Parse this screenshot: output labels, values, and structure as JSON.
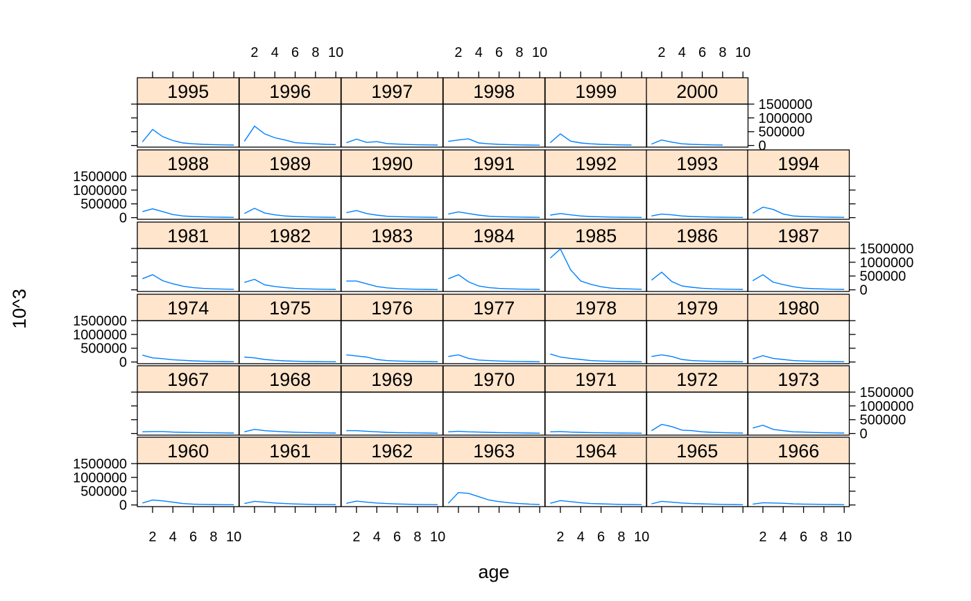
{
  "chart_data": {
    "type": "line",
    "layout": "lattice panels by year, 7 columns x 6 rows",
    "xlabel": "age",
    "ylabel": "10^3",
    "x": [
      1,
      2,
      3,
      4,
      5,
      6,
      7,
      8,
      9,
      10
    ],
    "xticks": [
      2,
      4,
      6,
      8,
      10
    ],
    "xlim": [
      0.5,
      10.5
    ],
    "ylim": [
      -60000,
      1500000
    ],
    "yticks": [
      0,
      500000,
      1000000,
      1500000
    ],
    "ytick_labels": [
      "0",
      "500000",
      "1000000",
      "1500000"
    ],
    "series_color": "#0080ff",
    "strip_color": "#ffe5cc",
    "series": [
      {
        "name": "1960",
        "values": [
          70000,
          180000,
          150000,
          100000,
          50000,
          30000,
          20000,
          15000,
          10000,
          8000
        ]
      },
      {
        "name": "1961",
        "values": [
          50000,
          130000,
          100000,
          70000,
          50000,
          35000,
          25000,
          18000,
          12000,
          10000
        ]
      },
      {
        "name": "1962",
        "values": [
          60000,
          140000,
          100000,
          70000,
          50000,
          35000,
          25000,
          18000,
          12000,
          10000
        ]
      },
      {
        "name": "1963",
        "values": [
          60000,
          450000,
          420000,
          300000,
          180000,
          120000,
          80000,
          50000,
          30000,
          20000
        ]
      },
      {
        "name": "1964",
        "values": [
          60000,
          160000,
          120000,
          80000,
          50000,
          40000,
          30000,
          20000,
          15000,
          10000
        ]
      },
      {
        "name": "1965",
        "values": [
          40000,
          130000,
          100000,
          70000,
          50000,
          40000,
          30000,
          20000,
          15000,
          10000
        ]
      },
      {
        "name": "1966",
        "values": [
          30000,
          80000,
          70000,
          60000,
          40000,
          30000,
          25000,
          20000,
          15000,
          10000
        ]
      },
      {
        "name": "1967",
        "values": [
          60000,
          70000,
          70000,
          50000,
          40000,
          35000,
          30000,
          25000,
          20000,
          15000
        ]
      },
      {
        "name": "1968",
        "values": [
          60000,
          150000,
          100000,
          80000,
          60000,
          45000,
          35000,
          25000,
          20000,
          15000
        ]
      },
      {
        "name": "1969",
        "values": [
          100000,
          100000,
          80000,
          60000,
          40000,
          30000,
          25000,
          20000,
          15000,
          10000
        ]
      },
      {
        "name": "1970",
        "values": [
          60000,
          80000,
          60000,
          50000,
          40000,
          30000,
          25000,
          20000,
          15000,
          10000
        ]
      },
      {
        "name": "1971",
        "values": [
          60000,
          70000,
          50000,
          40000,
          30000,
          25000,
          20000,
          15000,
          12000,
          10000
        ]
      },
      {
        "name": "1972",
        "values": [
          100000,
          330000,
          250000,
          120000,
          100000,
          60000,
          40000,
          30000,
          20000,
          15000
        ]
      },
      {
        "name": "1973",
        "values": [
          200000,
          300000,
          150000,
          100000,
          60000,
          50000,
          35000,
          25000,
          20000,
          15000
        ]
      },
      {
        "name": "1974",
        "values": [
          250000,
          150000,
          120000,
          80000,
          60000,
          40000,
          30000,
          20000,
          15000,
          10000
        ]
      },
      {
        "name": "1975",
        "values": [
          180000,
          150000,
          90000,
          60000,
          40000,
          30000,
          20000,
          15000,
          10000,
          8000
        ]
      },
      {
        "name": "1976",
        "values": [
          260000,
          220000,
          180000,
          90000,
          50000,
          35000,
          25000,
          20000,
          15000,
          10000
        ]
      },
      {
        "name": "1977",
        "values": [
          200000,
          260000,
          130000,
          70000,
          50000,
          35000,
          25000,
          20000,
          15000,
          10000
        ]
      },
      {
        "name": "1978",
        "values": [
          290000,
          180000,
          130000,
          90000,
          50000,
          35000,
          25000,
          20000,
          15000,
          10000
        ]
      },
      {
        "name": "1979",
        "values": [
          200000,
          260000,
          200000,
          90000,
          50000,
          35000,
          25000,
          20000,
          15000,
          10000
        ]
      },
      {
        "name": "1980",
        "values": [
          110000,
          230000,
          130000,
          90000,
          50000,
          35000,
          25000,
          20000,
          15000,
          10000
        ]
      },
      {
        "name": "1981",
        "values": [
          400000,
          550000,
          330000,
          220000,
          130000,
          80000,
          50000,
          35000,
          25000,
          20000
        ]
      },
      {
        "name": "1982",
        "values": [
          270000,
          380000,
          180000,
          120000,
          80000,
          50000,
          35000,
          25000,
          20000,
          15000
        ]
      },
      {
        "name": "1983",
        "values": [
          320000,
          320000,
          220000,
          120000,
          70000,
          45000,
          30000,
          20000,
          15000,
          10000
        ]
      },
      {
        "name": "1984",
        "values": [
          400000,
          550000,
          290000,
          140000,
          80000,
          50000,
          35000,
          25000,
          20000,
          15000
        ]
      },
      {
        "name": "1985",
        "values": [
          1150000,
          1480000,
          730000,
          320000,
          200000,
          110000,
          60000,
          40000,
          30000,
          20000
        ]
      },
      {
        "name": "1986",
        "values": [
          350000,
          640000,
          300000,
          140000,
          90000,
          55000,
          35000,
          25000,
          20000,
          15000
        ]
      },
      {
        "name": "1987",
        "values": [
          330000,
          550000,
          280000,
          190000,
          110000,
          60000,
          40000,
          30000,
          20000,
          15000
        ]
      },
      {
        "name": "1988",
        "values": [
          220000,
          320000,
          220000,
          110000,
          60000,
          40000,
          30000,
          20000,
          15000,
          10000
        ]
      },
      {
        "name": "1989",
        "values": [
          150000,
          340000,
          170000,
          100000,
          60000,
          40000,
          30000,
          20000,
          15000,
          10000
        ]
      },
      {
        "name": "1990",
        "values": [
          180000,
          260000,
          150000,
          90000,
          50000,
          35000,
          25000,
          20000,
          15000,
          10000
        ]
      },
      {
        "name": "1991",
        "values": [
          130000,
          210000,
          150000,
          90000,
          50000,
          35000,
          25000,
          20000,
          15000,
          10000
        ]
      },
      {
        "name": "1992",
        "values": [
          90000,
          150000,
          100000,
          60000,
          40000,
          30000,
          20000,
          15000,
          10000,
          8000
        ]
      },
      {
        "name": "1993",
        "values": [
          60000,
          130000,
          100000,
          60000,
          40000,
          30000,
          20000,
          15000,
          10000,
          8000
        ]
      },
      {
        "name": "1994",
        "values": [
          160000,
          380000,
          300000,
          130000,
          60000,
          40000,
          30000,
          20000,
          15000,
          10000
        ]
      },
      {
        "name": "1995",
        "values": [
          130000,
          580000,
          320000,
          180000,
          90000,
          60000,
          40000,
          30000,
          20000,
          15000
        ]
      },
      {
        "name": "1996",
        "values": [
          150000,
          700000,
          420000,
          280000,
          200000,
          100000,
          80000,
          60000,
          40000,
          30000
        ]
      },
      {
        "name": "1997",
        "values": [
          100000,
          230000,
          110000,
          140000,
          70000,
          50000,
          35000,
          25000,
          20000,
          15000
        ]
      },
      {
        "name": "1998",
        "values": [
          150000,
          200000,
          240000,
          90000,
          60000,
          40000,
          30000,
          20000,
          15000,
          10000
        ]
      },
      {
        "name": "1999",
        "values": [
          100000,
          420000,
          160000,
          90000,
          60000,
          40000,
          30000,
          20000,
          15000,
          null
        ]
      },
      {
        "name": "2000",
        "values": [
          50000,
          200000,
          120000,
          60000,
          40000,
          30000,
          20000,
          15000,
          null,
          null
        ]
      }
    ]
  }
}
